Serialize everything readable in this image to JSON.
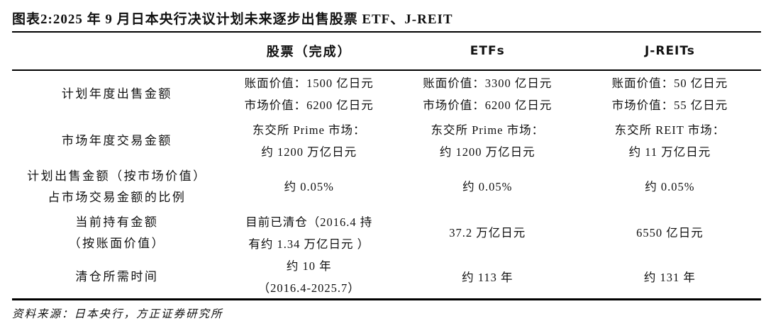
{
  "page": {
    "title": "图表2:2025 年 9 月日本央行决议计划未来逐步出售股票 ETF、J-REIT",
    "source_note": "资料来源：日本央行，方正证券研究所"
  },
  "table": {
    "header": {
      "col0": "",
      "col1": "股票（完成）",
      "col2": "ETFs",
      "col3": "J-REITs"
    },
    "rows": [
      {
        "label": [
          "计划年度出售金额"
        ],
        "stocks": [
          "账面价值：1500 亿日元",
          "市场价值：6200 亿日元"
        ],
        "etfs": [
          "账面价值：3300 亿日元",
          "市场价值：6200 亿日元"
        ],
        "jreits": [
          "账面价值：50 亿日元",
          "市场价值：55 亿日元"
        ]
      },
      {
        "label": [
          "市场年度交易金额"
        ],
        "stocks": [
          "东交所 Prime 市场：",
          "约 1200 万亿日元"
        ],
        "etfs": [
          "东交所 Prime 市场：",
          "约 1200 万亿日元"
        ],
        "jreits": [
          "东交所 REIT 市场：",
          "约 11 万亿日元"
        ]
      },
      {
        "label": [
          "计划出售金额（按市场价值）",
          "占市场交易金额的比例"
        ],
        "stocks": [
          "约 0.05%"
        ],
        "etfs": [
          "约 0.05%"
        ],
        "jreits": [
          "约 0.05%"
        ]
      },
      {
        "label": [
          "当前持有金额",
          "（按账面价值）"
        ],
        "stocks": [
          "目前已清仓（2016.4 持",
          "有约 1.34 万亿日元 ）"
        ],
        "etfs": [
          "37.2 万亿日元"
        ],
        "jreits": [
          "6550 亿日元"
        ]
      },
      {
        "label": [
          "清仓所需时间"
        ],
        "stocks": [
          "约 10 年",
          "（2016.4-2025.7）"
        ],
        "etfs": [
          "约 113 年"
        ],
        "jreits": [
          "约 131 年"
        ]
      }
    ]
  }
}
